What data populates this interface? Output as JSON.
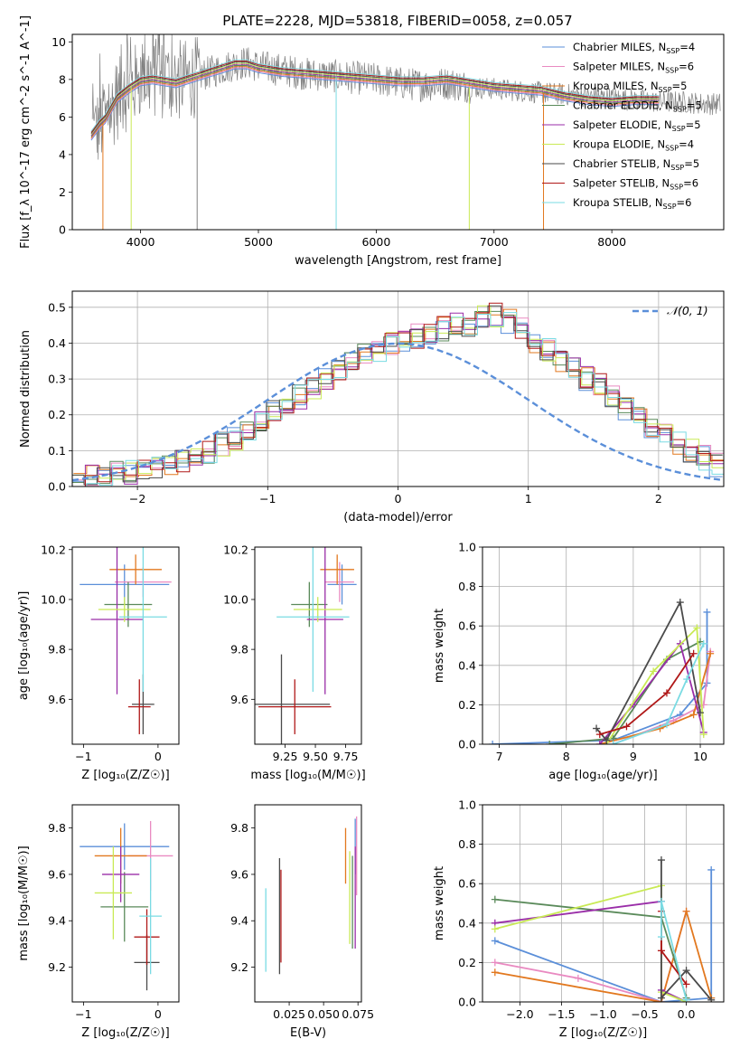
{
  "figure": {
    "title": "PLATE=2228, MJD=53818, FIBERID=0058, z=0.057",
    "series_colors": {
      "Chabrier MILES": "#5B8FD9",
      "Salpeter MILES": "#E98AC1",
      "Kroupa MILES": "#E2781F",
      "Chabrier ELODIE": "#5A8A5A",
      "Salpeter ELODIE": "#9A2EA8",
      "Kroupa ELODIE": "#C9EA55",
      "Chabrier STELIB": "#4A4A4A",
      "Salpeter STELIB": "#B01818",
      "Kroupa STELIB": "#7ADBE3"
    }
  },
  "chart_data": [
    {
      "id": "spectrum",
      "type": "line",
      "title": "PLATE=2228, MJD=53818, FIBERID=0058, z=0.057",
      "xlabel": "wavelength [Angstrom, rest frame]",
      "ylabel": "Flux [f_λ 10^-17 erg cm^-2 s^-1 A^-1]",
      "xlim": [
        3420,
        8950
      ],
      "ylim": [
        0,
        10.4
      ],
      "xticks": [
        4000,
        5000,
        6000,
        7000,
        8000
      ],
      "yticks": [
        0,
        2,
        4,
        6,
        8,
        10
      ],
      "grid": false,
      "legend_position": "upper-right",
      "legend": [
        {
          "label": "Chabrier MILES, N",
          "sub": "SSP",
          "tail": "=4",
          "color": "#5B8FD9"
        },
        {
          "label": "Salpeter MILES, N",
          "sub": "SSP",
          "tail": "=6",
          "color": "#E98AC1"
        },
        {
          "label": "Kroupa MILES, N",
          "sub": "SSP",
          "tail": "=5",
          "color": "#E2781F"
        },
        {
          "label": "Chabrier ELODIE, N",
          "sub": "SSP",
          "tail": "=5",
          "color": "#5A8A5A"
        },
        {
          "label": "Salpeter ELODIE, N",
          "sub": "SSP",
          "tail": "=5",
          "color": "#9A2EA8"
        },
        {
          "label": "Kroupa ELODIE, N",
          "sub": "SSP",
          "tail": "=4",
          "color": "#C9EA55"
        },
        {
          "label": "Chabrier STELIB, N",
          "sub": "SSP",
          "tail": "=5",
          "color": "#4A4A4A"
        },
        {
          "label": "Salpeter STELIB, N",
          "sub": "SSP",
          "tail": "=6",
          "color": "#B01818"
        },
        {
          "label": "Kroupa STELIB, N",
          "sub": "SSP",
          "tail": "=6",
          "color": "#7ADBE3"
        }
      ],
      "data_color": "#808080",
      "continuum_x": [
        3600,
        3700,
        3800,
        3900,
        4000,
        4100,
        4200,
        4300,
        4400,
        4500,
        4600,
        4700,
        4800,
        4900,
        5000,
        5200,
        5400,
        5600,
        5800,
        6000,
        6200,
        6400,
        6600,
        6800,
        7000,
        7200,
        7400,
        7600,
        7800,
        8000,
        8200,
        8400,
        8600,
        8800,
        8950
      ],
      "continuum_y": [
        5.2,
        5.8,
        6.9,
        7.5,
        8.0,
        8.1,
        8.0,
        7.9,
        8.0,
        8.2,
        8.4,
        8.6,
        8.8,
        8.9,
        8.7,
        8.5,
        8.3,
        8.2,
        8.1,
        8.0,
        7.8,
        7.7,
        7.8,
        7.6,
        7.5,
        7.4,
        7.3,
        7.2,
        7.1,
        7.0,
        6.9,
        6.8,
        6.8,
        6.7,
        6.7
      ],
      "model_x": [
        3580,
        3650,
        3700,
        3800,
        3900,
        4000,
        4100,
        4200,
        4300,
        4400,
        4500,
        4600,
        4700,
        4800,
        4900,
        5000,
        5200,
        5400,
        5600,
        5800,
        6000,
        6200,
        6400,
        6600,
        6800,
        7000,
        7200,
        7400,
        7600,
        7800,
        8000,
        8200,
        8400
      ],
      "model_y": [
        5.0,
        5.6,
        5.9,
        7.0,
        7.5,
        7.9,
        8.0,
        7.9,
        7.8,
        8.0,
        8.2,
        8.4,
        8.6,
        8.8,
        8.8,
        8.6,
        8.4,
        8.3,
        8.2,
        8.1,
        8.0,
        7.9,
        7.9,
        8.0,
        7.8,
        7.6,
        7.5,
        7.4,
        7.1,
        6.9,
        6.8,
        6.9,
        6.9
      ],
      "dips": [
        {
          "x": 3680,
          "y": 0,
          "color": "#E2781F"
        },
        {
          "x": 3920,
          "y": 0,
          "color": "#C9EA55"
        },
        {
          "x": 4480,
          "y": 0,
          "color": "#808080"
        },
        {
          "x": 5660,
          "y": 0,
          "color": "#7ADBE3"
        },
        {
          "x": 6790,
          "y": 0,
          "color": "#C9EA55"
        },
        {
          "x": 7420,
          "y": 0,
          "color": "#E2781F"
        }
      ]
    },
    {
      "id": "residuals",
      "type": "histogram",
      "xlabel": "(data-model)/error",
      "ylabel": "Normed distribution",
      "xlim": [
        -2.5,
        2.5
      ],
      "ylim": [
        0,
        0.545
      ],
      "xticks": [
        -2,
        -1,
        0,
        1,
        2
      ],
      "yticks": [
        0.0,
        0.1,
        0.2,
        0.3,
        0.4,
        0.5
      ],
      "grid": true,
      "legend_position": "upper-right",
      "legend_label": "𝒩(0, 1)",
      "gauss_color": "#5B8FD9",
      "bin_width": 0.1,
      "bins_start": -2.5,
      "base_values": [
        0.02,
        0.025,
        0.03,
        0.035,
        0.04,
        0.045,
        0.05,
        0.06,
        0.075,
        0.09,
        0.1,
        0.12,
        0.135,
        0.16,
        0.19,
        0.21,
        0.23,
        0.25,
        0.27,
        0.3,
        0.33,
        0.35,
        0.37,
        0.38,
        0.4,
        0.41,
        0.42,
        0.43,
        0.44,
        0.45,
        0.45,
        0.47,
        0.48,
        0.46,
        0.44,
        0.4,
        0.38,
        0.35,
        0.33,
        0.3,
        0.28,
        0.25,
        0.22,
        0.2,
        0.17,
        0.14,
        0.12,
        0.1,
        0.08,
        0.06
      ]
    },
    {
      "id": "age-vs-z",
      "type": "errorbar",
      "xlabel": "Z [log₁₀(Z/Z☉)]",
      "ylabel": "age  [log₁₀(age/yr)]",
      "xlim": [
        -1.15,
        0.28
      ],
      "ylim": [
        9.42,
        10.21
      ],
      "xticks": [
        -1,
        0
      ],
      "yticks": [
        9.6,
        9.8,
        10.0,
        10.2
      ],
      "points": [
        {
          "x": -0.45,
          "y": 10.06,
          "xerr": 0.6,
          "yerr": 0.08,
          "color": "#5B8FD9"
        },
        {
          "x": -0.2,
          "y": 10.07,
          "xerr": 0.38,
          "yerr": 0.06,
          "color": "#E98AC1"
        },
        {
          "x": -0.3,
          "y": 10.12,
          "xerr": 0.35,
          "yerr": 0.06,
          "color": "#E2781F"
        },
        {
          "x": -0.4,
          "y": 9.98,
          "xerr": 0.32,
          "yerr": 0.09,
          "color": "#5A8A5A"
        },
        {
          "x": -0.55,
          "y": 9.92,
          "xerr": 0.35,
          "yerr": 0.3,
          "color": "#9A2EA8"
        },
        {
          "x": -0.45,
          "y": 9.96,
          "xerr": 0.35,
          "yerr": 0.05,
          "color": "#C9EA55"
        },
        {
          "x": -0.2,
          "y": 9.58,
          "xerr": 0.15,
          "yerr": 0.12,
          "color": "#4A4A4A"
        },
        {
          "x": -0.25,
          "y": 9.57,
          "xerr": 0.15,
          "yerr": 0.11,
          "color": "#B01818"
        },
        {
          "x": -0.2,
          "y": 9.93,
          "xerr": 0.32,
          "yerr": 0.3,
          "color": "#7ADBE3"
        }
      ]
    },
    {
      "id": "age-vs-mass",
      "type": "errorbar",
      "xlabel": "mass [log₁₀(M/M☉)]",
      "ylabel": "",
      "xlim": [
        9.0,
        9.88
      ],
      "ylim": [
        9.42,
        10.21
      ],
      "xticks": [
        9.25,
        9.5,
        9.75
      ],
      "xticklabels": [
        "9.25",
        "9.50",
        "9.75"
      ],
      "yticks": [
        9.6,
        9.8,
        10.0,
        10.2
      ],
      "points": [
        {
          "x": 9.72,
          "y": 10.06,
          "xerr": 0.12,
          "yerr": 0.08,
          "color": "#5B8FD9"
        },
        {
          "x": 9.7,
          "y": 10.07,
          "xerr": 0.12,
          "yerr": 0.08,
          "color": "#E98AC1"
        },
        {
          "x": 9.68,
          "y": 10.12,
          "xerr": 0.14,
          "yerr": 0.06,
          "color": "#E2781F"
        },
        {
          "x": 9.45,
          "y": 9.98,
          "xerr": 0.15,
          "yerr": 0.09,
          "color": "#5A8A5A"
        },
        {
          "x": 9.58,
          "y": 9.92,
          "xerr": 0.15,
          "yerr": 0.3,
          "color": "#9A2EA8"
        },
        {
          "x": 9.52,
          "y": 9.96,
          "xerr": 0.2,
          "yerr": 0.05,
          "color": "#C9EA55"
        },
        {
          "x": 9.22,
          "y": 9.58,
          "xerr": 0.4,
          "yerr": 0.2,
          "color": "#4A4A4A"
        },
        {
          "x": 9.33,
          "y": 9.57,
          "xerr": 0.3,
          "yerr": 0.11,
          "color": "#B01818"
        },
        {
          "x": 9.48,
          "y": 9.93,
          "xerr": 0.3,
          "yerr": 0.3,
          "color": "#7ADBE3"
        }
      ]
    },
    {
      "id": "weight-vs-age",
      "type": "line",
      "xlabel": "age  [log₁₀(age/yr)]",
      "ylabel": "mass weight",
      "xlim": [
        6.75,
        10.35
      ],
      "ylim": [
        0,
        1.0
      ],
      "xticks": [
        7,
        8,
        9,
        10
      ],
      "yticks": [
        0.0,
        0.2,
        0.4,
        0.6,
        0.8,
        1.0
      ],
      "grid": true,
      "series": [
        {
          "color": "#5B8FD9",
          "x": [
            6.9,
            8.7,
            9.7,
            10.1,
            10.1
          ],
          "y": [
            0.0,
            0.02,
            0.15,
            0.31,
            0.67
          ]
        },
        {
          "color": "#E98AC1",
          "x": [
            8.7,
            9.6,
            10.05,
            10.15
          ],
          "y": [
            0.0,
            0.12,
            0.2,
            0.47
          ]
        },
        {
          "color": "#E2781F",
          "x": [
            8.5,
            9.4,
            9.9,
            10.15
          ],
          "y": [
            0.0,
            0.08,
            0.15,
            0.46
          ]
        },
        {
          "color": "#5A8A5A",
          "x": [
            7.75,
            8.7,
            9.5,
            10.0
          ],
          "y": [
            0.0,
            0.03,
            0.43,
            0.52
          ]
        },
        {
          "color": "#9A2EA8",
          "x": [
            8.5,
            9.0,
            9.7,
            10.05
          ],
          "y": [
            0.0,
            0.2,
            0.51,
            0.06
          ]
        },
        {
          "color": "#C9EA55",
          "x": [
            8.6,
            9.3,
            9.95,
            10.05
          ],
          "y": [
            0.0,
            0.37,
            0.59,
            0.05
          ]
        },
        {
          "color": "#4A4A4A",
          "x": [
            8.45,
            8.6,
            9.7,
            10.0
          ],
          "y": [
            0.08,
            0.02,
            0.72,
            0.16
          ]
        },
        {
          "color": "#B01818",
          "x": [
            8.5,
            8.9,
            9.5,
            9.9
          ],
          "y": [
            0.05,
            0.09,
            0.26,
            0.46
          ]
        },
        {
          "color": "#7ADBE3",
          "x": [
            8.7,
            9.5,
            9.8,
            10.05
          ],
          "y": [
            0.0,
            0.1,
            0.33,
            0.51
          ]
        }
      ]
    },
    {
      "id": "mass-vs-z",
      "type": "errorbar",
      "xlabel": "Z [log₁₀(Z/Z☉)]",
      "ylabel": "mass [log₁₀(M/M☉)]",
      "xlim": [
        -1.15,
        0.28
      ],
      "ylim": [
        9.05,
        9.9
      ],
      "xticks": [
        -1,
        0
      ],
      "yticks": [
        9.2,
        9.4,
        9.6,
        9.8
      ],
      "points": [
        {
          "x": -0.45,
          "y": 9.72,
          "xerr": 0.6,
          "yerr": 0.1,
          "color": "#5B8FD9"
        },
        {
          "x": -0.1,
          "y": 9.68,
          "xerr": 0.3,
          "yerr": 0.15,
          "color": "#E98AC1"
        },
        {
          "x": -0.5,
          "y": 9.68,
          "xerr": 0.35,
          "yerr": 0.12,
          "color": "#E2781F"
        },
        {
          "x": -0.45,
          "y": 9.46,
          "xerr": 0.32,
          "yerr": 0.15,
          "color": "#5A8A5A"
        },
        {
          "x": -0.5,
          "y": 9.6,
          "xerr": 0.25,
          "yerr": 0.12,
          "color": "#9A2EA8"
        },
        {
          "x": -0.6,
          "y": 9.52,
          "xerr": 0.25,
          "yerr": 0.2,
          "color": "#C9EA55"
        },
        {
          "x": -0.15,
          "y": 9.22,
          "xerr": 0.17,
          "yerr": 0.12,
          "color": "#4A4A4A"
        },
        {
          "x": -0.15,
          "y": 9.33,
          "xerr": 0.17,
          "yerr": 0.12,
          "color": "#B01818"
        },
        {
          "x": -0.1,
          "y": 9.42,
          "xerr": 0.15,
          "yerr": 0.25,
          "color": "#7ADBE3"
        }
      ]
    },
    {
      "id": "mass-vs-ebv",
      "type": "errorbar",
      "xlabel": "E(B-V)",
      "ylabel": "",
      "xlim": [
        0.0,
        0.0775
      ],
      "ylim": [
        9.05,
        9.9
      ],
      "xticks": [
        0.025,
        0.05,
        0.075
      ],
      "xticklabels": [
        "0.025",
        "0.050",
        "0.075"
      ],
      "yticks": [
        9.2,
        9.4,
        9.6,
        9.8
      ],
      "points": [
        {
          "x": 0.073,
          "y": 9.72,
          "xerr": 0.0,
          "yerr": 0.12,
          "color": "#5B8FD9"
        },
        {
          "x": 0.074,
          "y": 9.68,
          "xerr": 0.0,
          "yerr": 0.17,
          "color": "#E98AC1"
        },
        {
          "x": 0.066,
          "y": 9.68,
          "xerr": 0.0,
          "yerr": 0.12,
          "color": "#E2781F"
        },
        {
          "x": 0.071,
          "y": 9.48,
          "xerr": 0.0,
          "yerr": 0.2,
          "color": "#5A8A5A"
        },
        {
          "x": 0.073,
          "y": 9.5,
          "xerr": 0.0,
          "yerr": 0.22,
          "color": "#9A2EA8"
        },
        {
          "x": 0.069,
          "y": 9.5,
          "xerr": 0.0,
          "yerr": 0.2,
          "color": "#C9EA55"
        },
        {
          "x": 0.018,
          "y": 9.42,
          "xerr": 0.0,
          "yerr": 0.25,
          "color": "#4A4A4A"
        },
        {
          "x": 0.019,
          "y": 9.42,
          "xerr": 0.0,
          "yerr": 0.2,
          "color": "#B01818"
        },
        {
          "x": 0.008,
          "y": 9.36,
          "xerr": 0.0,
          "yerr": 0.18,
          "color": "#7ADBE3"
        }
      ]
    },
    {
      "id": "weight-vs-z",
      "type": "line",
      "xlabel": "Z [log₁₀(Z/Z☉)]",
      "ylabel": "mass weight",
      "xlim": [
        -2.45,
        0.45
      ],
      "ylim": [
        0,
        1.0
      ],
      "xticks": [
        -2.0,
        -1.5,
        -1.0,
        -0.5,
        0.0
      ],
      "xticklabels": [
        "−2.0",
        "−1.5",
        "−1.0",
        "−0.5",
        "0.0"
      ],
      "yticks": [
        0.0,
        0.2,
        0.4,
        0.6,
        0.8,
        1.0
      ],
      "grid": true,
      "series": [
        {
          "color": "#5B8FD9",
          "x": [
            -2.3,
            -0.3,
            0.3,
            0.3
          ],
          "y": [
            0.31,
            0.0,
            0.02,
            0.67
          ]
        },
        {
          "color": "#E98AC1",
          "x": [
            -2.3,
            -1.3,
            -0.3,
            0.0
          ],
          "y": [
            0.2,
            0.12,
            0.0,
            0.46
          ]
        },
        {
          "color": "#E2781F",
          "x": [
            -2.3,
            -0.3,
            0.0,
            0.3
          ],
          "y": [
            0.15,
            0.0,
            0.46,
            0.02
          ]
        },
        {
          "color": "#5A8A5A",
          "x": [
            -2.3,
            -0.3,
            0.0
          ],
          "y": [
            0.52,
            0.43,
            0.02
          ]
        },
        {
          "color": "#9A2EA8",
          "x": [
            -2.3,
            -0.3,
            -0.3,
            0.0
          ],
          "y": [
            0.4,
            0.51,
            0.06,
            0.0
          ]
        },
        {
          "color": "#C9EA55",
          "x": [
            -2.3,
            -0.3,
            -0.3,
            0.0
          ],
          "y": [
            0.37,
            0.59,
            0.05,
            0.0
          ]
        },
        {
          "color": "#4A4A4A",
          "x": [
            -0.3,
            -0.3,
            0.0,
            0.3
          ],
          "y": [
            0.72,
            0.02,
            0.16,
            0.01
          ]
        },
        {
          "color": "#B01818",
          "x": [
            -0.3,
            -0.3,
            0.0
          ],
          "y": [
            0.46,
            0.26,
            0.09
          ]
        },
        {
          "color": "#7ADBE3",
          "x": [
            -0.3,
            -0.3,
            0.0
          ],
          "y": [
            0.33,
            0.51,
            0.01
          ]
        }
      ]
    }
  ]
}
